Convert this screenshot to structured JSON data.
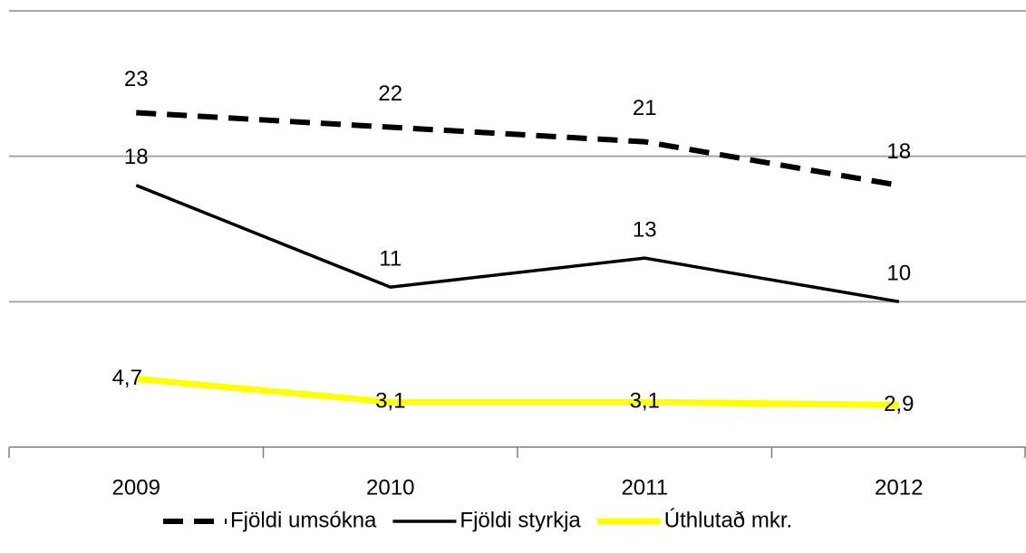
{
  "chart_data": {
    "type": "line",
    "categories": [
      "2009",
      "2010",
      "2011",
      "2012"
    ],
    "series": [
      {
        "name": "Fjöldi umsókna",
        "color": "#000000",
        "dash": true,
        "values": [
          23,
          22,
          21,
          18
        ]
      },
      {
        "name": "Fjöldi styrkja",
        "color": "#000000",
        "values": [
          18,
          11,
          13,
          10
        ]
      },
      {
        "name": "Úthlutað mkr.",
        "color": "#ffff00",
        "values": [
          4.7,
          3.1,
          3.1,
          2.9
        ],
        "value_labels": [
          "4,7",
          "3,1",
          "3,1",
          "2,9"
        ]
      }
    ],
    "ylim": [
      0,
      30
    ],
    "yticks": [
      0,
      10,
      20,
      30
    ],
    "grid": true,
    "legend": "bottom"
  }
}
